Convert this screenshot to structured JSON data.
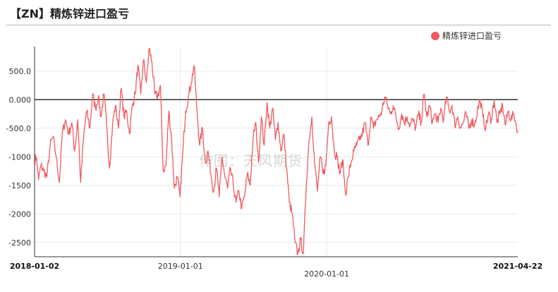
{
  "title": "【ZN】精炼锌进口盈亏",
  "watermark": "作图：天风期货",
  "chart_data": {
    "type": "line",
    "title": "【ZN】精炼锌进口盈亏",
    "xlabel": "",
    "ylabel": "",
    "ylim": [
      -2750,
      930
    ],
    "y_ticks": [
      500,
      0,
      -500,
      -1000,
      -1500,
      -2000,
      -2500
    ],
    "y_tick_labels": [
      "500.0",
      "0.000",
      "-500.0",
      "-1000",
      "-1500",
      "-2000",
      "-2500"
    ],
    "x_range": [
      "2018-01-02",
      "2021-04-22"
    ],
    "x_ticks": [
      {
        "label": "2018-01-02",
        "date": "2018-01-02",
        "bold": true,
        "row": 0
      },
      {
        "label": "2019-01-01",
        "date": "2019-01-01",
        "bold": false,
        "row": 0
      },
      {
        "label": "2020-01-01",
        "date": "2020-01-01",
        "bold": false,
        "row": 1
      },
      {
        "label": "2021-04-22",
        "date": "2021-04-22",
        "bold": true,
        "row": 0
      }
    ],
    "grid": true,
    "zero_line": true,
    "legend_position": "top-right",
    "series": [
      {
        "name": "精炼锌进口盈亏",
        "color": "#f05a5f",
        "points": [
          [
            "2018-01-02",
            -1050
          ],
          [
            "2018-01-06",
            -1000
          ],
          [
            "2018-01-12",
            -1400
          ],
          [
            "2018-01-18",
            -1150
          ],
          [
            "2018-01-25",
            -1250
          ],
          [
            "2018-02-02",
            -1350
          ],
          [
            "2018-02-10",
            -800
          ],
          [
            "2018-02-17",
            -650
          ],
          [
            "2018-02-25",
            -1000
          ],
          [
            "2018-03-05",
            -1450
          ],
          [
            "2018-03-12",
            -600
          ],
          [
            "2018-03-20",
            -350
          ],
          [
            "2018-03-28",
            -600
          ],
          [
            "2018-04-05",
            -400
          ],
          [
            "2018-04-12",
            -900
          ],
          [
            "2018-04-20",
            -350
          ],
          [
            "2018-04-27",
            -1450
          ],
          [
            "2018-05-05",
            -600
          ],
          [
            "2018-05-12",
            -200
          ],
          [
            "2018-05-20",
            -500
          ],
          [
            "2018-05-27",
            100
          ],
          [
            "2018-06-03",
            -150
          ],
          [
            "2018-06-10",
            50
          ],
          [
            "2018-06-17",
            -300
          ],
          [
            "2018-06-24",
            100
          ],
          [
            "2018-07-01",
            -450
          ],
          [
            "2018-07-08",
            -1200
          ],
          [
            "2018-07-16",
            -400
          ],
          [
            "2018-07-23",
            -100
          ],
          [
            "2018-07-30",
            -500
          ],
          [
            "2018-08-06",
            200
          ],
          [
            "2018-08-13",
            -300
          ],
          [
            "2018-08-20",
            -200
          ],
          [
            "2018-08-27",
            -600
          ],
          [
            "2018-09-03",
            -100
          ],
          [
            "2018-09-10",
            100
          ],
          [
            "2018-09-17",
            600
          ],
          [
            "2018-09-24",
            100
          ],
          [
            "2018-10-01",
            700
          ],
          [
            "2018-10-08",
            300
          ],
          [
            "2018-10-15",
            900
          ],
          [
            "2018-10-22",
            650
          ],
          [
            "2018-10-29",
            100
          ],
          [
            "2018-11-05",
            50
          ],
          [
            "2018-11-12",
            250
          ],
          [
            "2018-11-19",
            -1250
          ],
          [
            "2018-11-26",
            -1150
          ],
          [
            "2018-12-03",
            -200
          ],
          [
            "2018-12-10",
            -700
          ],
          [
            "2018-12-17",
            -1550
          ],
          [
            "2018-12-24",
            -1350
          ],
          [
            "2018-12-31",
            -1700
          ],
          [
            "2019-01-07",
            -900
          ],
          [
            "2019-01-14",
            -200
          ],
          [
            "2019-01-21",
            50
          ],
          [
            "2019-01-28",
            300
          ],
          [
            "2019-02-04",
            600
          ],
          [
            "2019-02-11",
            -150
          ],
          [
            "2019-02-18",
            -800
          ],
          [
            "2019-02-25",
            -500
          ],
          [
            "2019-03-04",
            -1100
          ],
          [
            "2019-03-11",
            -900
          ],
          [
            "2019-03-18",
            -1300
          ],
          [
            "2019-03-25",
            -1600
          ],
          [
            "2019-04-01",
            -1200
          ],
          [
            "2019-04-08",
            -1700
          ],
          [
            "2019-04-15",
            -1000
          ],
          [
            "2019-04-22",
            -1350
          ],
          [
            "2019-04-29",
            -1550
          ],
          [
            "2019-05-06",
            -1200
          ],
          [
            "2019-05-13",
            -1500
          ],
          [
            "2019-05-20",
            -1800
          ],
          [
            "2019-05-27",
            -1600
          ],
          [
            "2019-06-03",
            -1900
          ],
          [
            "2019-06-10",
            -1700
          ],
          [
            "2019-06-17",
            -1300
          ],
          [
            "2019-06-24",
            -1500
          ],
          [
            "2019-07-01",
            -700
          ],
          [
            "2019-07-08",
            -400
          ],
          [
            "2019-07-15",
            -1100
          ],
          [
            "2019-07-22",
            -300
          ],
          [
            "2019-07-29",
            -800
          ],
          [
            "2019-08-05",
            -50
          ],
          [
            "2019-08-12",
            -500
          ],
          [
            "2019-08-19",
            -150
          ],
          [
            "2019-08-26",
            -700
          ],
          [
            "2019-09-02",
            -400
          ],
          [
            "2019-09-09",
            -900
          ],
          [
            "2019-09-16",
            -600
          ],
          [
            "2019-09-23",
            -1200
          ],
          [
            "2019-09-30",
            -1800
          ],
          [
            "2019-10-07",
            -2000
          ],
          [
            "2019-10-14",
            -2500
          ],
          [
            "2019-10-21",
            -2700
          ],
          [
            "2019-10-28",
            -2450
          ],
          [
            "2019-11-04",
            -2700
          ],
          [
            "2019-11-11",
            -1500
          ],
          [
            "2019-11-18",
            -700
          ],
          [
            "2019-11-25",
            -300
          ],
          [
            "2019-12-02",
            -1100
          ],
          [
            "2019-12-09",
            -1600
          ],
          [
            "2019-12-16",
            -1000
          ],
          [
            "2019-12-23",
            -1300
          ],
          [
            "2019-12-30",
            -1150
          ],
          [
            "2020-01-06",
            -400
          ],
          [
            "2020-01-13",
            -300
          ],
          [
            "2020-01-20",
            -900
          ],
          [
            "2020-01-27",
            -1000
          ],
          [
            "2020-02-03",
            -1300
          ],
          [
            "2020-02-10",
            -1050
          ],
          [
            "2020-02-17",
            -1650
          ],
          [
            "2020-02-24",
            -1350
          ],
          [
            "2020-03-02",
            -1100
          ],
          [
            "2020-03-09",
            -900
          ],
          [
            "2020-03-16",
            -800
          ],
          [
            "2020-03-23",
            -700
          ],
          [
            "2020-03-30",
            -600
          ],
          [
            "2020-04-06",
            -400
          ],
          [
            "2020-04-13",
            -800
          ],
          [
            "2020-04-20",
            -300
          ],
          [
            "2020-04-27",
            -500
          ],
          [
            "2020-05-04",
            -350
          ],
          [
            "2020-05-11",
            -300
          ],
          [
            "2020-05-18",
            -200
          ],
          [
            "2020-05-25",
            50
          ],
          [
            "2020-06-01",
            -100
          ],
          [
            "2020-06-08",
            -250
          ],
          [
            "2020-06-15",
            -100
          ],
          [
            "2020-06-22",
            -300
          ],
          [
            "2020-06-29",
            -500
          ],
          [
            "2020-07-06",
            -250
          ],
          [
            "2020-07-13",
            -400
          ],
          [
            "2020-07-20",
            -300
          ],
          [
            "2020-07-27",
            -450
          ],
          [
            "2020-08-03",
            -350
          ],
          [
            "2020-08-10",
            -500
          ],
          [
            "2020-08-17",
            -250
          ],
          [
            "2020-08-24",
            -400
          ],
          [
            "2020-08-31",
            100
          ],
          [
            "2020-09-07",
            -300
          ],
          [
            "2020-09-14",
            -100
          ],
          [
            "2020-09-21",
            -400
          ],
          [
            "2020-09-28",
            -250
          ],
          [
            "2020-10-05",
            -400
          ],
          [
            "2020-10-12",
            -150
          ],
          [
            "2020-10-19",
            -350
          ],
          [
            "2020-10-26",
            50
          ],
          [
            "2020-11-02",
            -200
          ],
          [
            "2020-11-09",
            -100
          ],
          [
            "2020-11-16",
            -450
          ],
          [
            "2020-11-23",
            -300
          ],
          [
            "2020-11-30",
            -500
          ],
          [
            "2020-12-07",
            -400
          ],
          [
            "2020-12-14",
            -250
          ],
          [
            "2020-12-21",
            -500
          ],
          [
            "2020-12-28",
            -350
          ],
          [
            "2021-01-04",
            -450
          ],
          [
            "2021-01-11",
            -200
          ],
          [
            "2021-01-18",
            0
          ],
          [
            "2021-01-25",
            -300
          ],
          [
            "2021-02-01",
            -500
          ],
          [
            "2021-02-08",
            -250
          ],
          [
            "2021-02-15",
            -350
          ],
          [
            "2021-02-22",
            0
          ],
          [
            "2021-03-01",
            -400
          ],
          [
            "2021-03-08",
            -250
          ],
          [
            "2021-03-15",
            -100
          ],
          [
            "2021-03-22",
            -450
          ],
          [
            "2021-03-29",
            -200
          ],
          [
            "2021-04-05",
            -350
          ],
          [
            "2021-04-12",
            -250
          ],
          [
            "2021-04-22",
            -550
          ]
        ]
      }
    ]
  }
}
